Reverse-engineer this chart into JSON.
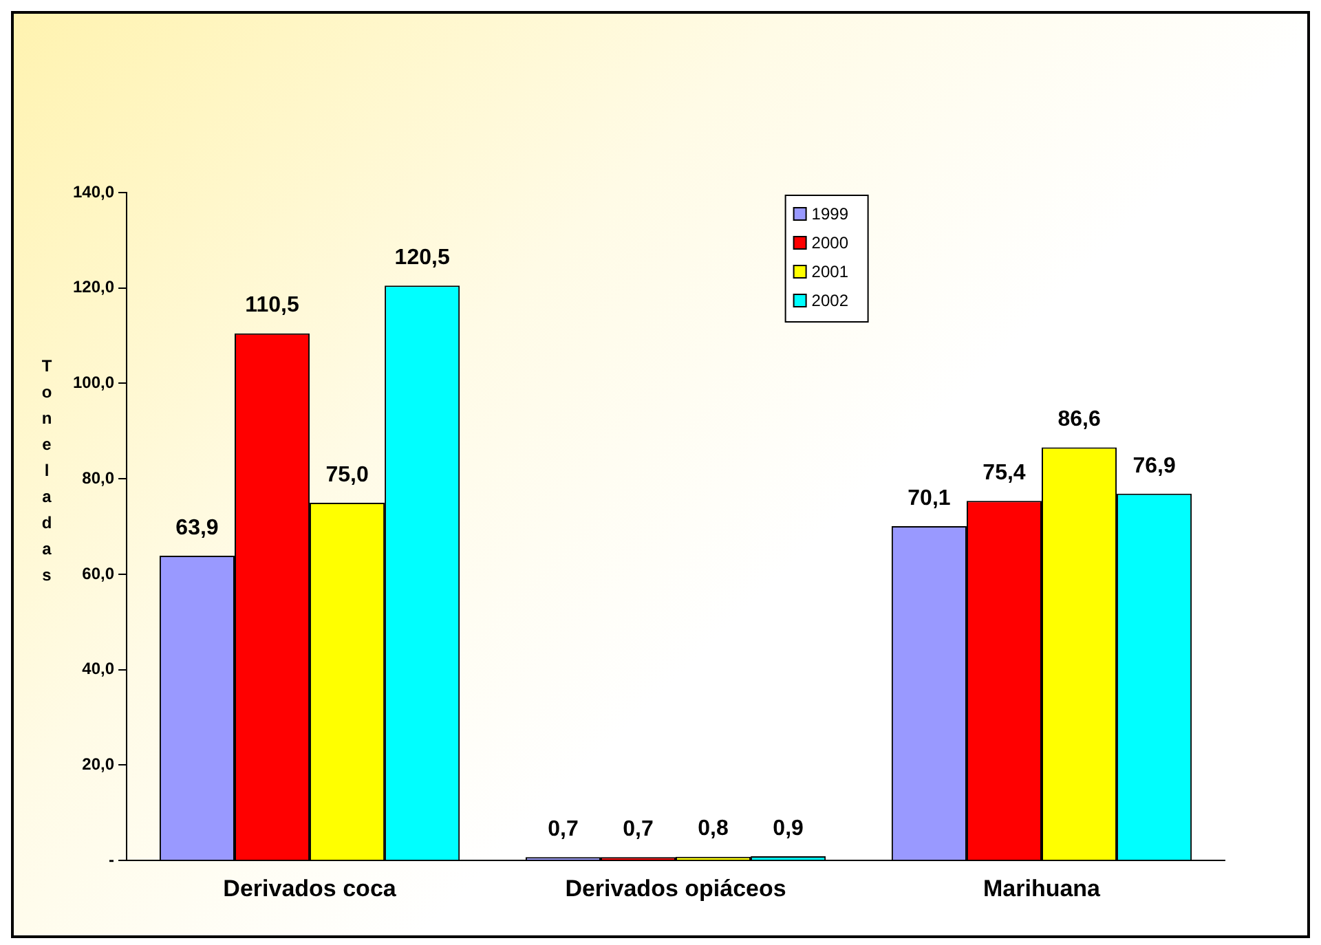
{
  "chart_data": {
    "type": "bar",
    "ylabel": "Toneladas",
    "categories": [
      "Derivados coca",
      "Derivados opiáceos",
      "Marihuana"
    ],
    "series": [
      {
        "name": "1999",
        "color": "#9999ff",
        "values": [
          63.9,
          0.7,
          70.1
        ],
        "value_labels": [
          "63,9",
          "0,7",
          "70,1"
        ]
      },
      {
        "name": "2000",
        "color": "#ff0000",
        "values": [
          110.5,
          0.7,
          75.4
        ],
        "value_labels": [
          "110,5",
          "0,7",
          "75,4"
        ]
      },
      {
        "name": "2001",
        "color": "#ffff00",
        "values": [
          75.0,
          0.8,
          86.6
        ],
        "value_labels": [
          "75,0",
          "0,8",
          "86,6"
        ]
      },
      {
        "name": "2002",
        "color": "#00ffff",
        "values": [
          120.5,
          0.9,
          76.9
        ],
        "value_labels": [
          "120,5",
          "0,9",
          "76,9"
        ]
      }
    ],
    "ylim": [
      0,
      140
    ],
    "yticks": [
      {
        "value": 0,
        "label": "-"
      },
      {
        "value": 20,
        "label": "20,0"
      },
      {
        "value": 40,
        "label": "40,0"
      },
      {
        "value": 60,
        "label": "60,0"
      },
      {
        "value": 80,
        "label": "80,0"
      },
      {
        "value": 100,
        "label": "100,0"
      },
      {
        "value": 120,
        "label": "120,0"
      },
      {
        "value": 140,
        "label": "140,0"
      }
    ],
    "grid": false,
    "legend": "top right"
  }
}
